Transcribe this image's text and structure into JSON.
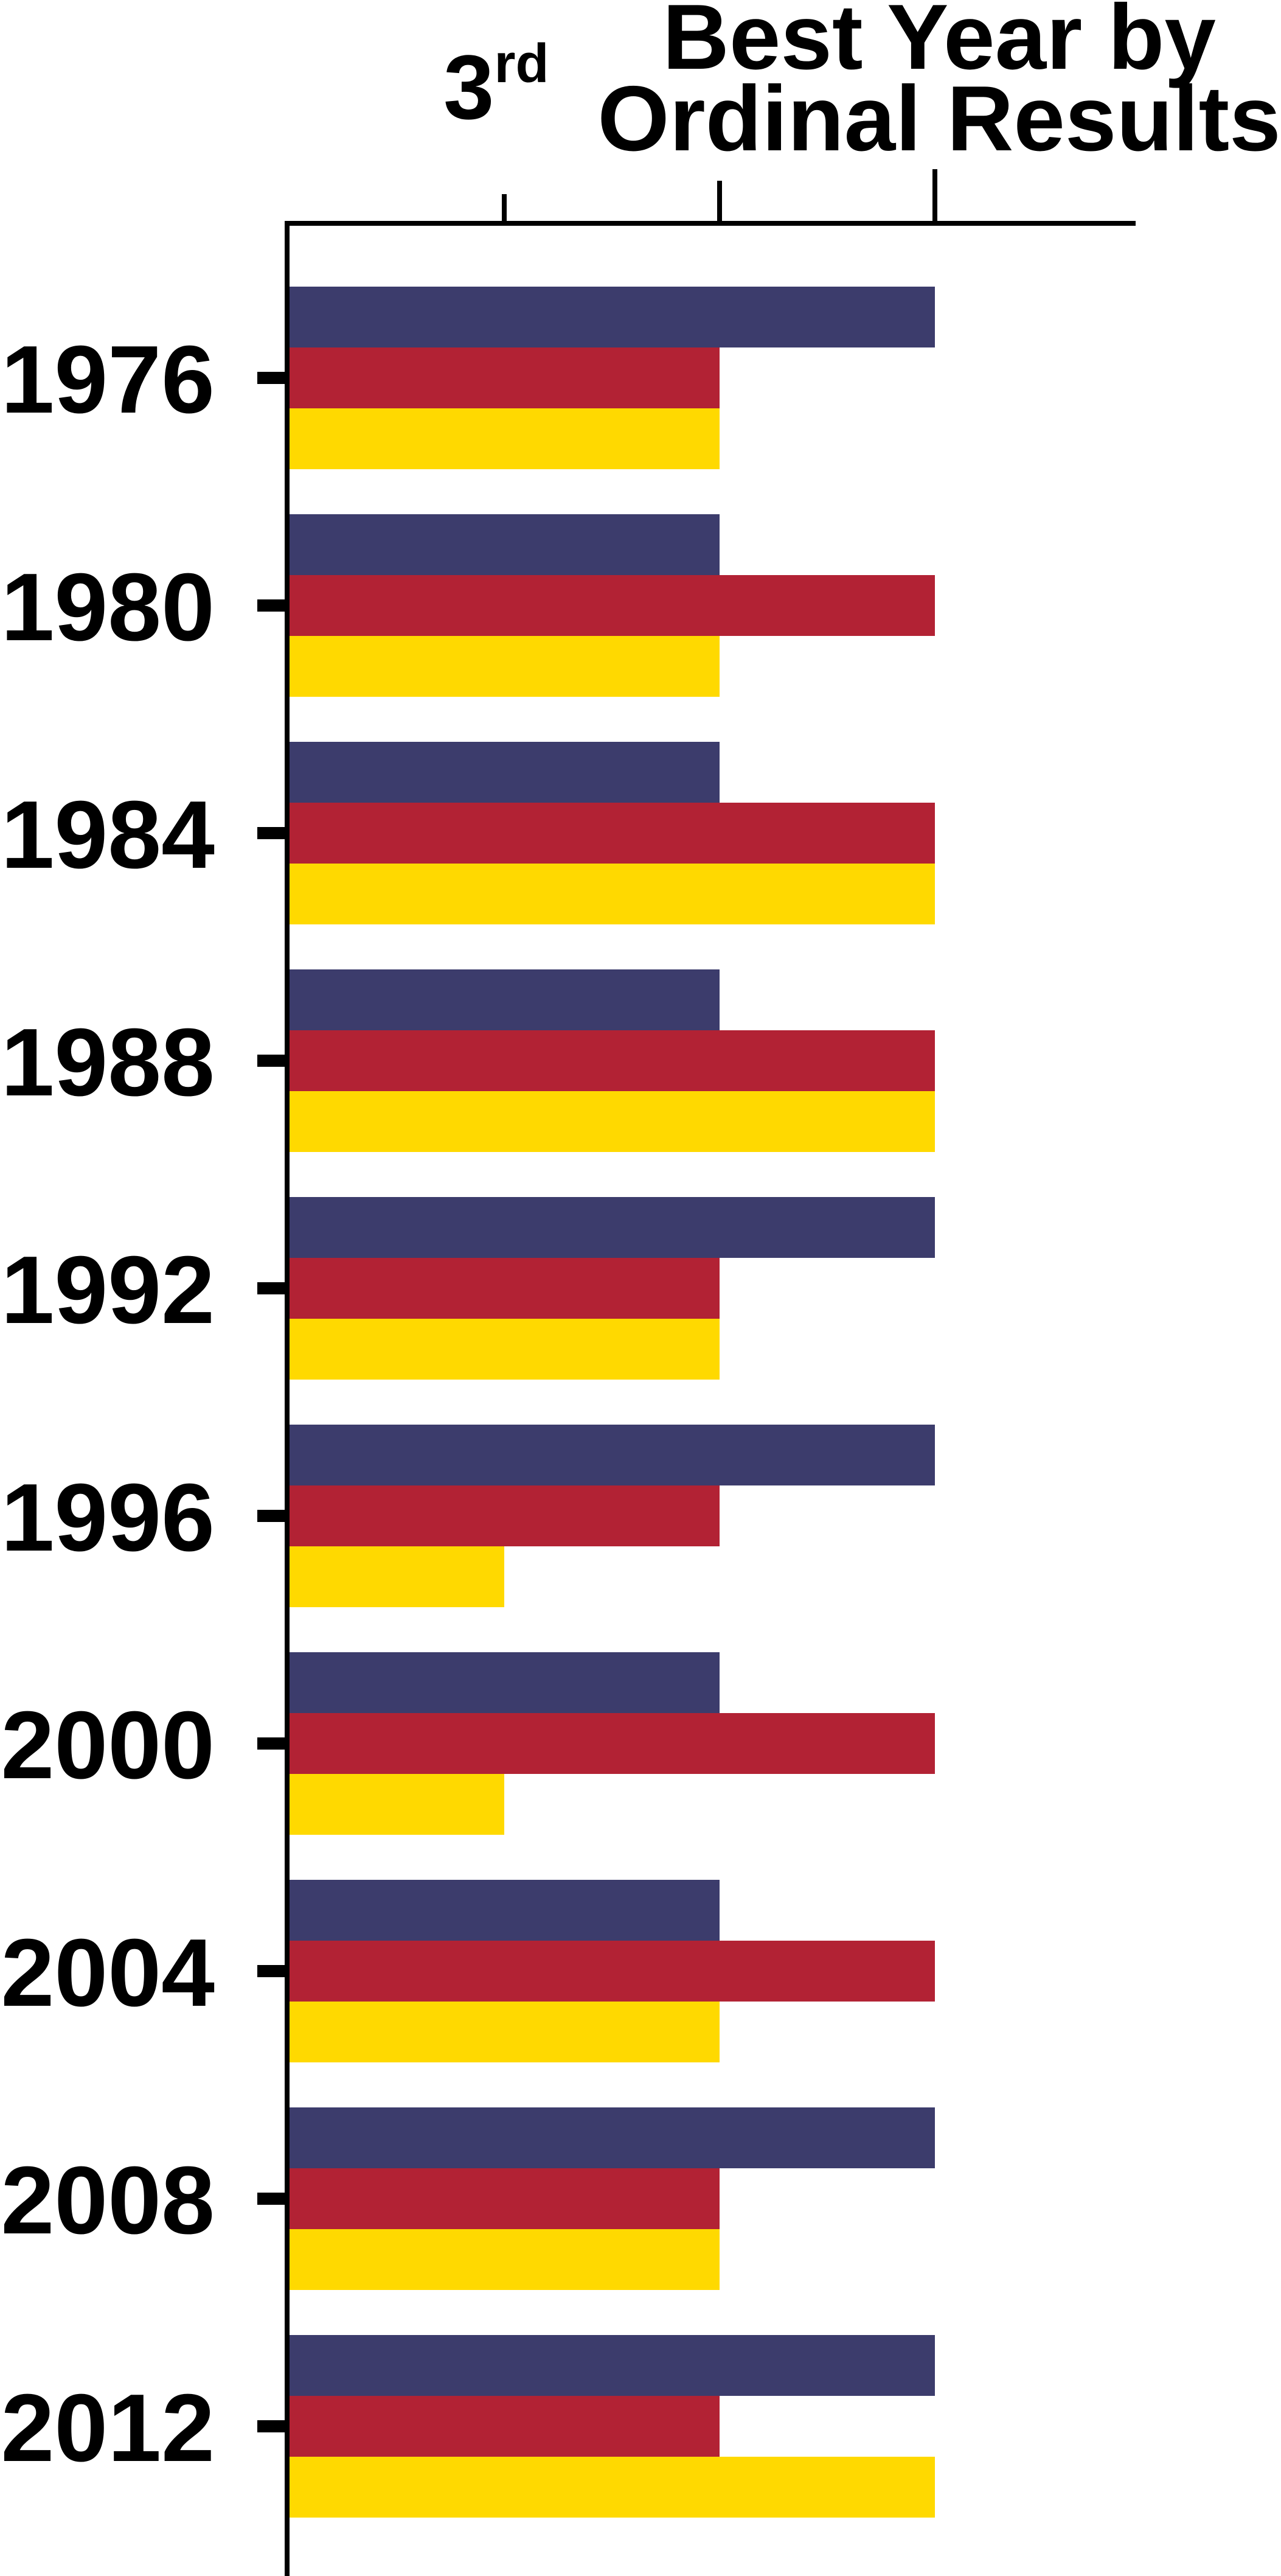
{
  "chart_data": {
    "type": "bar",
    "orientation": "horizontal",
    "title_lines": [
      "Best Year by",
      "Ordinal Results"
    ],
    "xaxis_position": "top",
    "xticks": [
      {
        "rank": 3,
        "label_main": "3",
        "label_sup": "rd"
      },
      {
        "rank": 2,
        "label_main": "",
        "label_sup": ""
      },
      {
        "rank": 1,
        "label_main": "",
        "label_sup": ""
      }
    ],
    "value_meaning": "ordinal place; 1 = 1st (longest bar), 2 = 2nd, 3 = 3rd",
    "categories": [
      "1976",
      "1980",
      "1984",
      "1988",
      "1992",
      "1996",
      "2000",
      "2004",
      "2008",
      "2012"
    ],
    "series": [
      {
        "color": "#3c3c6c",
        "values": [
          1,
          2,
          2,
          2,
          1,
          1,
          2,
          2,
          1,
          1
        ]
      },
      {
        "color": "#b22234",
        "values": [
          2,
          1,
          1,
          1,
          2,
          2,
          1,
          1,
          2,
          2
        ]
      },
      {
        "color": "#ffd900",
        "values": [
          2,
          2,
          1,
          1,
          2,
          3,
          3,
          2,
          2,
          1
        ]
      }
    ],
    "grid": false,
    "legend": "none"
  }
}
